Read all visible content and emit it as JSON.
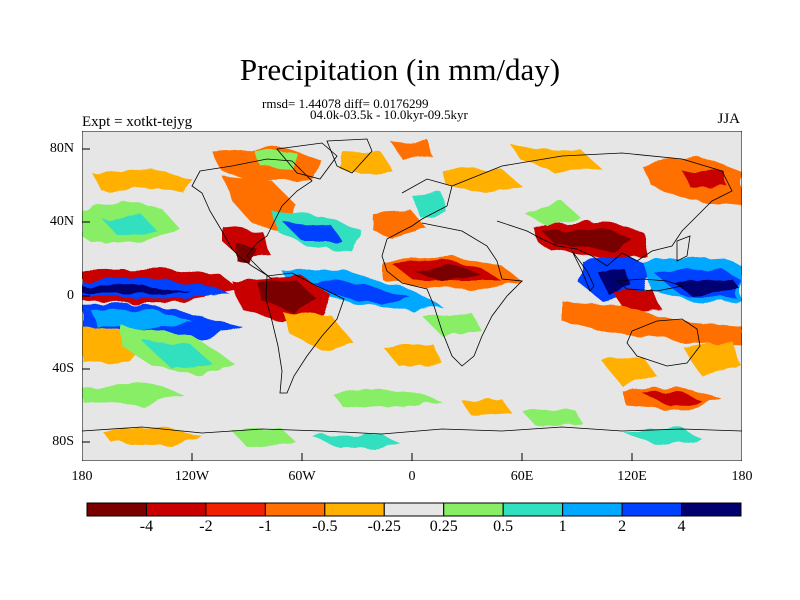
{
  "title": "Precipitation (in mm/day)",
  "stats_line": "rmsd= 1.44078 diff= 0.0176299",
  "period_line": "04.0k-03.5k - 10.0kyr-09.5kyr",
  "experiment": "Expt = xotkt-tejyg",
  "season": "JJA",
  "lat_labels": [
    "80N",
    "40N",
    "0",
    "40S",
    "80S"
  ],
  "lon_labels": [
    "180",
    "120W",
    "60W",
    "0",
    "60E",
    "120E",
    "180"
  ],
  "colorbar": {
    "labels": [
      "-4",
      "-2",
      "-1",
      "-0.5",
      "-0.25",
      "0.25",
      "0.5",
      "1",
      "2",
      "4"
    ],
    "colors": [
      "#7a0000",
      "#c80000",
      "#f02000",
      "#ff7000",
      "#ffb000",
      "#e6e6e6",
      "#88ee66",
      "#30e0c0",
      "#00a8ff",
      "#0040ff",
      "#000070"
    ]
  },
  "colors": {
    "ocean_background": "#e6e6e6",
    "coastline": "#000000"
  }
}
